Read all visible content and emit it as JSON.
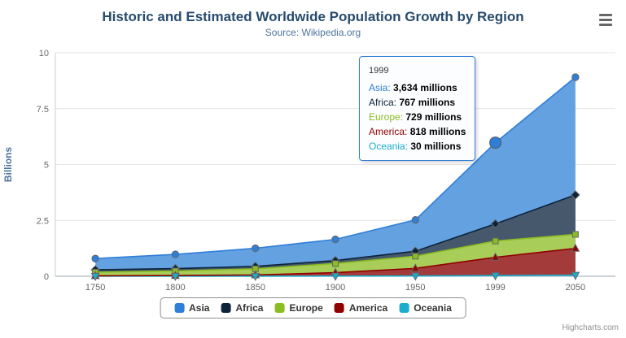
{
  "header": {
    "title": "Historic and Estimated Worldwide Population Growth by Region",
    "subtitle": "Source: Wikipedia.org"
  },
  "y_axis": {
    "title": "Billions",
    "tick_labels": [
      "0",
      "2.5",
      "5",
      "7.5",
      "10"
    ],
    "tick_values": [
      0,
      2.5,
      5,
      7.5,
      10
    ]
  },
  "x_axis": {
    "categories": [
      "1750",
      "1800",
      "1850",
      "1900",
      "1950",
      "1999",
      "2050"
    ]
  },
  "chart_data": {
    "type": "area",
    "stacking": "normal",
    "title": "Historic and Estimated Worldwide Population Growth by Region",
    "subtitle": "Source: Wikipedia.org",
    "ylabel": "Billions",
    "xlabel": "",
    "unit": "millions",
    "ylim": [
      0,
      10
    ],
    "grid": true,
    "legend_position": "bottom",
    "categories": [
      "1750",
      "1800",
      "1850",
      "1900",
      "1950",
      "1999",
      "2050"
    ],
    "series": [
      {
        "name": "Asia",
        "color": "#2f7ed8",
        "fill": "#63a1e1",
        "marker": "circle",
        "values": [
          502,
          635,
          809,
          947,
          1402,
          3634,
          5268
        ]
      },
      {
        "name": "Africa",
        "color": "#0d233a",
        "fill": "#46586c",
        "marker": "diamond",
        "values": [
          106,
          107,
          111,
          133,
          221,
          767,
          1766
        ]
      },
      {
        "name": "Europe",
        "color": "#8bbc21",
        "fill": "#a8cd59",
        "marker": "square",
        "values": [
          163,
          203,
          276,
          408,
          547,
          729,
          628
        ]
      },
      {
        "name": "America",
        "color": "#910000",
        "fill": "#a33b3b",
        "marker": "triangle",
        "values": [
          18,
          31,
          54,
          156,
          339,
          818,
          1201
        ]
      },
      {
        "name": "Oceania",
        "color": "#1aadce",
        "fill": "#53c1da",
        "marker": "triangle-down",
        "values": [
          2,
          2,
          2,
          6,
          13,
          30,
          46
        ]
      }
    ],
    "hover": {
      "series": "Asia",
      "category": "1999",
      "category_index": 5
    }
  },
  "tooltip": {
    "header": "1999",
    "border_color": "#2f7ed8",
    "rows": [
      {
        "label": "Asia",
        "value": "3,634 millions",
        "color": "#2f7ed8"
      },
      {
        "label": "Africa",
        "value": "767 millions",
        "color": "#0d233a"
      },
      {
        "label": "Europe",
        "value": "729 millions",
        "color": "#8bbc21"
      },
      {
        "label": "America",
        "value": "818 millions",
        "color": "#910000"
      },
      {
        "label": "Oceania",
        "value": "30 millions",
        "color": "#1aadce"
      }
    ]
  },
  "export_menu": {
    "icon": "hamburger-menu"
  },
  "credits": {
    "label": "Highcharts.com"
  }
}
